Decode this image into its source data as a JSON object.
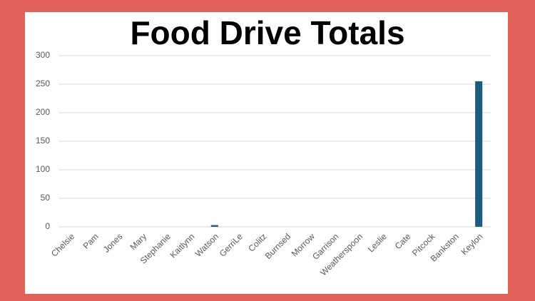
{
  "chart_data": {
    "type": "bar",
    "title": "Food Drive Totals",
    "categories": [
      "Chelsie",
      "Pam",
      "Jones",
      "Mary",
      "Stephanie",
      "Kaitlynn",
      "Watson",
      "GerriLe",
      "Colitz",
      "Burnsed",
      "Morrow",
      "Garrison",
      "Weatherspoon",
      "Leslie",
      "Cate",
      "Pitcock",
      "Bankston",
      "Keylon"
    ],
    "values": [
      0,
      0,
      0,
      0,
      0,
      0,
      3,
      0,
      0,
      0,
      0,
      0,
      0,
      0,
      0,
      0,
      0,
      255
    ],
    "color": "#1c5d7c",
    "ylim": [
      0,
      300
    ],
    "yticks": [
      0,
      50,
      100,
      150,
      200,
      250,
      300
    ],
    "grid": true
  }
}
